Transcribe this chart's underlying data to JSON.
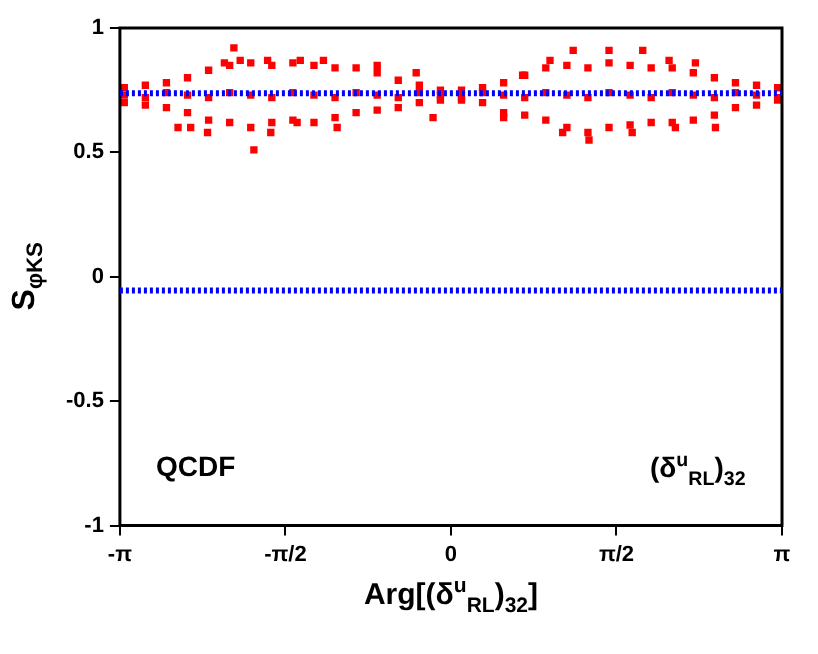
{
  "chart_data": {
    "type": "scatter",
    "xlabel": "Arg[(δ$^{u}$$_{RL}$)$_{32}$]",
    "ylabel": "S$_{φK}$$_{S}$",
    "annotations": [
      "QCDF",
      "(δ$^{u}$$_{RL}$)$_{32}$"
    ],
    "xlim": [
      -3.1416,
      3.1416
    ],
    "xticks": [
      {
        "value": -3.1416,
        "label": "-π"
      },
      {
        "value": -1.5708,
        "label": "-π/2"
      },
      0,
      {
        "value": 1.5708,
        "label": "π/2"
      },
      {
        "value": 3.1416,
        "label": "π"
      }
    ],
    "ylim": [
      -1,
      1
    ],
    "yticks": [
      -1,
      -0.5,
      0,
      0.5,
      1
    ],
    "grid": false,
    "legend": false,
    "marker": "square",
    "ref_lines": [
      {
        "axis": "y",
        "value": 0.738,
        "color": "#0000ff",
        "line_style": "dotted"
      },
      {
        "axis": "y",
        "value": -0.055,
        "color": "#0000ff",
        "line_style": "dotted"
      }
    ],
    "series": [
      {
        "color": "#ff0000",
        "x": [
          -3.1,
          -3.1,
          -3.1,
          -2.9,
          -2.9,
          -2.9,
          -2.7,
          -2.7,
          -2.7,
          -2.5,
          -2.5,
          -2.5,
          -2.3,
          -2.3,
          -2.3,
          -2.1,
          -2.1,
          -2.1,
          -1.9,
          -1.9,
          -1.9,
          -1.7,
          -1.7,
          -1.7,
          -1.5,
          -1.5,
          -1.5,
          -1.3,
          -1.3,
          -1.3,
          -1.1,
          -1.1,
          -1.1,
          -0.9,
          -0.9,
          -0.9,
          -0.7,
          -0.7,
          -0.7,
          -0.5,
          -0.5,
          -0.5,
          -0.3,
          -0.3,
          -0.3,
          -0.1,
          -0.1,
          -0.1,
          0.1,
          0.1,
          0.1,
          0.3,
          0.3,
          0.3,
          0.5,
          0.5,
          0.5,
          0.7,
          0.7,
          0.7,
          0.9,
          0.9,
          0.9,
          1.1,
          1.1,
          1.1,
          1.3,
          1.3,
          1.3,
          1.5,
          1.5,
          1.5,
          1.7,
          1.7,
          1.7,
          1.9,
          1.9,
          1.9,
          2.1,
          2.1,
          2.1,
          2.3,
          2.3,
          2.3,
          2.5,
          2.5,
          2.5,
          2.7,
          2.7,
          2.7,
          2.9,
          2.9,
          2.9,
          3.1,
          3.1,
          3.1,
          -2.06,
          -1.87,
          -1.71,
          -2.59,
          -2.47,
          -2.31,
          -2.15,
          -2.0,
          -1.74,
          -1.43,
          -1.21,
          -0.7,
          -0.33,
          -0.17,
          -1.08,
          -1.46,
          1.16,
          1.5,
          1.82,
          1.06,
          1.31,
          1.72,
          2.13,
          2.51,
          2.32,
          2.07,
          0.5,
          0.68,
          0.94
        ],
        "values": [
          0.76,
          0.73,
          0.7,
          0.77,
          0.72,
          0.69,
          0.78,
          0.74,
          0.68,
          0.8,
          0.73,
          0.66,
          0.83,
          0.72,
          0.63,
          0.85,
          0.74,
          0.62,
          0.86,
          0.73,
          0.6,
          0.85,
          0.72,
          0.62,
          0.86,
          0.74,
          0.63,
          0.85,
          0.73,
          0.62,
          0.84,
          0.72,
          0.64,
          0.84,
          0.74,
          0.66,
          0.82,
          0.73,
          0.67,
          0.79,
          0.72,
          0.68,
          0.77,
          0.74,
          0.7,
          0.75,
          0.73,
          0.71,
          0.75,
          0.72,
          0.71,
          0.76,
          0.74,
          0.7,
          0.78,
          0.73,
          0.66,
          0.81,
          0.72,
          0.65,
          0.84,
          0.74,
          0.63,
          0.85,
          0.73,
          0.6,
          0.84,
          0.72,
          0.58,
          0.86,
          0.74,
          0.6,
          0.85,
          0.73,
          0.61,
          0.84,
          0.72,
          0.62,
          0.84,
          0.74,
          0.62,
          0.82,
          0.73,
          0.63,
          0.8,
          0.72,
          0.65,
          0.78,
          0.74,
          0.68,
          0.77,
          0.73,
          0.69,
          0.76,
          0.72,
          0.71,
          0.92,
          0.51,
          0.58,
          0.6,
          0.6,
          0.58,
          0.86,
          0.87,
          0.87,
          0.87,
          0.87,
          0.85,
          0.82,
          0.64,
          0.6,
          0.62,
          0.91,
          0.91,
          0.91,
          0.58,
          0.55,
          0.58,
          0.6,
          0.6,
          0.86,
          0.87,
          0.64,
          0.81,
          0.87
        ]
      }
    ]
  }
}
